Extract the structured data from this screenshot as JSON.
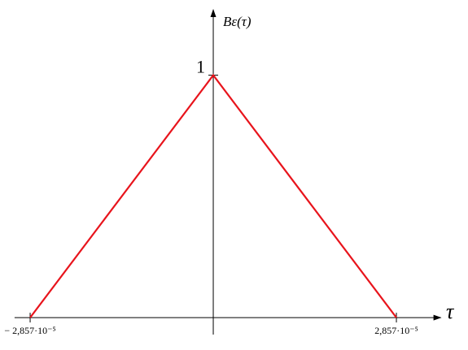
{
  "chart_data": {
    "type": "line",
    "xlabel": "τ",
    "ylabel": "Bε(τ)",
    "x": [
      -2.857e-05,
      0,
      2.857e-05
    ],
    "series": [
      {
        "color": "#e8141c",
        "values": [
          0,
          1,
          0
        ]
      }
    ],
    "xlim": [
      -3.1e-05,
      3.55e-05
    ],
    "ylim": [
      -0.07,
      1.27
    ],
    "xticks": [
      {
        "value": -2.857e-05,
        "label": "− 2,857·10⁻⁵"
      },
      {
        "value": 2.857e-05,
        "label": "2,857·10⁻⁵"
      }
    ],
    "yticks": [
      1
    ]
  }
}
